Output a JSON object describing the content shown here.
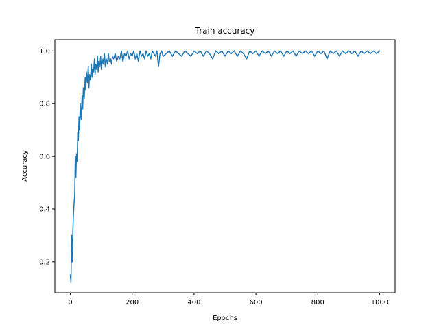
{
  "chart_data": {
    "type": "line",
    "title": "Train accuracy",
    "xlabel": "Epochs",
    "ylabel": "Accuracy",
    "xlim": [
      -50,
      1050
    ],
    "ylim": [
      0.0825,
      1.0425
    ],
    "xticks": [
      0,
      200,
      400,
      600,
      800,
      1000
    ],
    "yticks": [
      0.2,
      0.4,
      0.6,
      0.8,
      1.0
    ],
    "xtick_labels": [
      "0",
      "200",
      "400",
      "600",
      "800",
      "1000"
    ],
    "ytick_labels": [
      "0.2",
      "0.4",
      "0.6",
      "0.8",
      "1.0"
    ],
    "grid": false,
    "line_color": "#1f77b4",
    "series": [
      {
        "x": [
          0,
          2,
          4,
          6,
          8,
          10,
          12,
          14,
          16,
          18,
          20,
          22,
          24,
          26,
          28,
          30,
          32,
          35,
          38,
          40,
          42,
          45,
          48,
          50,
          52,
          55,
          58,
          60,
          62,
          65,
          68,
          70,
          72,
          75,
          78,
          80,
          82,
          85,
          88,
          90,
          92,
          95,
          98,
          100,
          103,
          106,
          110,
          113,
          116,
          120,
          123,
          126,
          130,
          133,
          136,
          140,
          145,
          150,
          155,
          160,
          165,
          170,
          175,
          180,
          185,
          190,
          195,
          200,
          205,
          210,
          215,
          220,
          225,
          230,
          235,
          240,
          245,
          250,
          255,
          260,
          265,
          270,
          275,
          280,
          285,
          290,
          295,
          300,
          310,
          320,
          330,
          340,
          350,
          360,
          370,
          380,
          390,
          400,
          410,
          420,
          430,
          440,
          450,
          460,
          470,
          480,
          490,
          500,
          510,
          520,
          530,
          540,
          550,
          560,
          570,
          580,
          590,
          600,
          610,
          620,
          630,
          640,
          650,
          660,
          670,
          680,
          690,
          700,
          710,
          720,
          730,
          740,
          750,
          760,
          770,
          780,
          790,
          800,
          810,
          820,
          830,
          840,
          850,
          860,
          870,
          880,
          890,
          900,
          910,
          920,
          930,
          940,
          950,
          960,
          970,
          980,
          990,
          1000
        ],
        "y": [
          0.15,
          0.12,
          0.3,
          0.2,
          0.31,
          0.38,
          0.42,
          0.45,
          0.6,
          0.52,
          0.61,
          0.58,
          0.69,
          0.66,
          0.75,
          0.7,
          0.8,
          0.74,
          0.83,
          0.78,
          0.86,
          0.82,
          0.9,
          0.85,
          0.92,
          0.88,
          0.94,
          0.86,
          0.91,
          0.89,
          0.95,
          0.9,
          0.93,
          0.92,
          0.97,
          0.91,
          0.95,
          0.93,
          0.98,
          0.92,
          0.96,
          0.94,
          0.98,
          0.93,
          0.97,
          0.95,
          0.99,
          0.94,
          0.97,
          0.95,
          0.99,
          0.96,
          0.97,
          0.95,
          0.98,
          0.97,
          0.99,
          0.96,
          0.98,
          0.97,
          1.0,
          0.96,
          0.99,
          0.98,
          1.0,
          0.97,
          0.99,
          0.98,
          1.0,
          0.97,
          0.99,
          0.96,
          1.0,
          0.98,
          0.99,
          0.97,
          1.0,
          0.98,
          0.99,
          0.97,
          1.0,
          0.99,
          0.98,
          1.0,
          0.94,
          0.99,
          1.0,
          0.98,
          0.99,
          1.0,
          0.98,
          1.0,
          0.99,
          0.98,
          1.0,
          0.99,
          0.98,
          1.0,
          0.99,
          1.0,
          0.98,
          1.0,
          0.99,
          0.97,
          1.0,
          0.99,
          1.0,
          0.98,
          1.0,
          0.99,
          1.0,
          0.98,
          1.0,
          0.99,
          0.97,
          1.0,
          0.99,
          1.0,
          0.98,
          1.0,
          0.99,
          1.0,
          0.98,
          1.0,
          0.99,
          1.0,
          0.98,
          1.0,
          0.99,
          1.0,
          0.98,
          1.0,
          0.99,
          1.0,
          0.99,
          1.0,
          0.98,
          1.0,
          0.99,
          1.0,
          0.97,
          1.0,
          0.99,
          1.0,
          0.98,
          1.0,
          0.99,
          1.0,
          0.99,
          1.0,
          0.98,
          1.0,
          0.99,
          1.0,
          0.99,
          1.0,
          0.99,
          1.0
        ]
      }
    ]
  }
}
